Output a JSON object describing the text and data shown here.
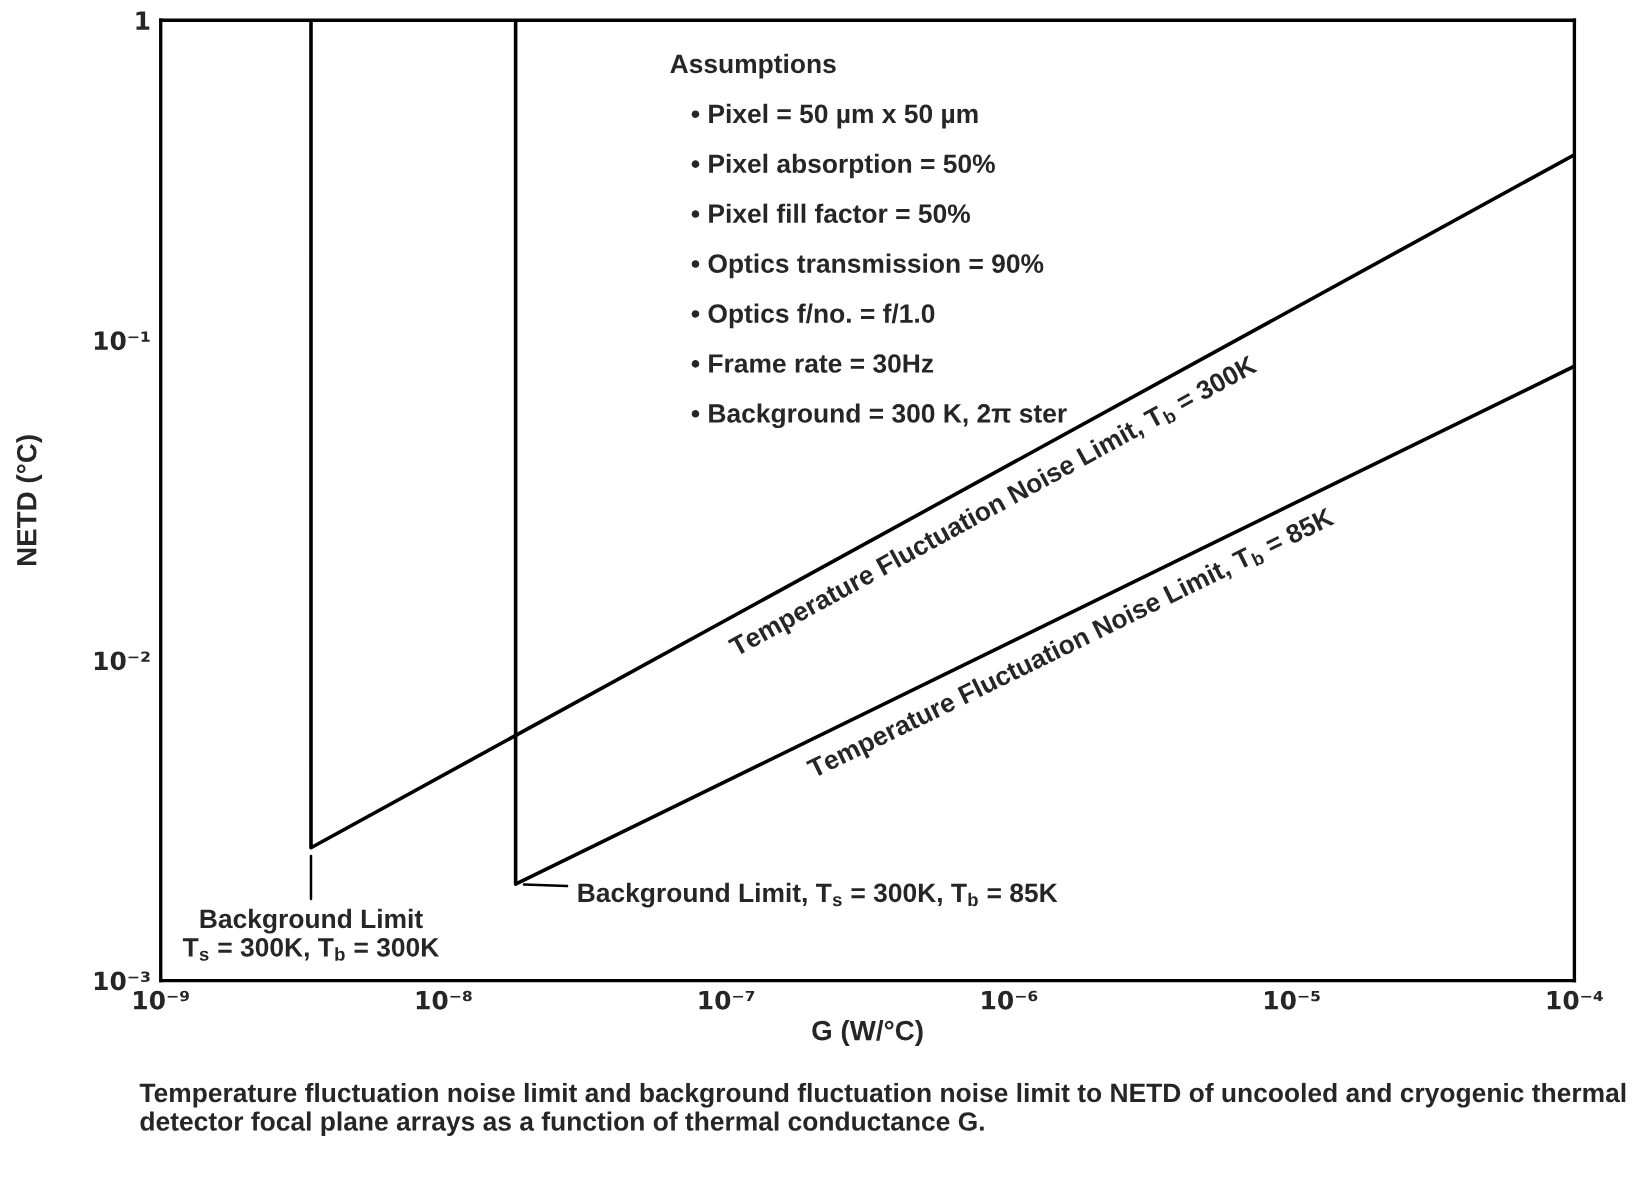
{
  "chart_data": {
    "type": "line",
    "xlabel": "G (W/°C)",
    "ylabel": "NETD (°C)",
    "log": "xy",
    "grid": false,
    "legend": false,
    "marker": "none",
    "line_style": "solid",
    "xlim": [
      1e-09,
      0.0001
    ],
    "ylim": [
      0.001,
      1
    ],
    "xticks": [
      {
        "value": 1e-09,
        "label": "10⁻⁹"
      },
      {
        "value": 1e-08,
        "label": "10⁻⁸"
      },
      {
        "value": 1e-07,
        "label": "10⁻⁷"
      },
      {
        "value": 1e-06,
        "label": "10⁻⁶"
      },
      {
        "value": 1e-05,
        "label": "10⁻⁵"
      },
      {
        "value": 0.0001,
        "label": "10⁻⁴"
      }
    ],
    "yticks": [
      {
        "value": 0.001,
        "label": "10⁻³"
      },
      {
        "value": 0.01,
        "label": "10⁻²"
      },
      {
        "value": 0.1,
        "label": "10⁻¹"
      },
      1
    ],
    "series": [
      {
        "color": "#000000",
        "x": [
          3.4e-09,
          3.4e-09,
          0.0001
        ],
        "values": [
          1,
          0.0026,
          0.38
        ]
      },
      {
        "color": "#000000",
        "x": [
          1.8e-08,
          1.8e-08,
          0.0001
        ],
        "values": [
          1,
          0.002,
          0.083
        ]
      }
    ],
    "annotations": [
      "Assumptions",
      "• Pixel = 50 µm x 50 µm",
      "• Pixel absorption = 50%",
      "• Pixel fill factor = 50%",
      "• Optics transmission = 90%",
      "• Optics f/no. = f/1.0",
      "• Frame rate = 30Hz",
      "• Background = 300 K, 2π ster",
      {
        "text": "Background Limit\nT$_{s}$ = 300K, T$_{b}$ = 300K",
        "x": 3.4e-09,
        "y": 0.0026
      },
      {
        "text": "Background Limit, T$_{s}$ = 300K, T$_{b}$ = 85K",
        "x": 1.8e-08,
        "y": 0.002
      },
      {
        "text": "Temperature Fluctuation Noise Limit, T$_{b}$ = 300K",
        "x": 7.9e-07,
        "y": 0.036
      },
      {
        "text": "Temperature Fluctuation Noise Limit, T$_{b}$ = 85K",
        "x": 1.5e-06,
        "y": 0.0135
      },
      "Temperature fluctuation noise limit and background fluctuation noise limit to NETD of uncooled and cryogenic thermal detector focal plane arrays as a function of thermal conductance G."
    ]
  }
}
